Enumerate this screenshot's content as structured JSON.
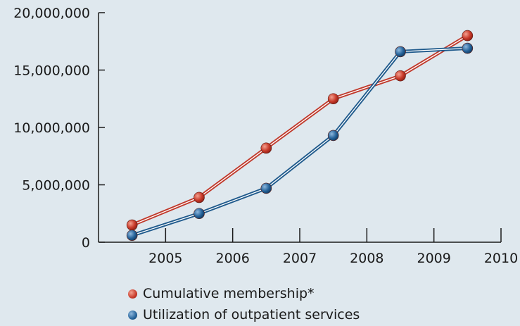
{
  "chart_data": {
    "type": "line",
    "x_ticks": [
      "2005",
      "2006",
      "2007",
      "2008",
      "2009",
      "2010"
    ],
    "y_ticks": [
      "0",
      "5,000,000",
      "10,000,000",
      "15,000,000",
      "20,000,000"
    ],
    "ylim": [
      0,
      20000000
    ],
    "xlim": [
      2004,
      2010
    ],
    "x": [
      2004.5,
      2005.5,
      2006.5,
      2007.5,
      2008.5,
      2009.5
    ],
    "series": [
      {
        "name": "Cumulative membership*",
        "color": "#c0392b",
        "values": [
          1500000,
          3900000,
          8200000,
          12500000,
          14500000,
          18000000
        ]
      },
      {
        "name": "Utilization of outpatient services",
        "color": "#1f5a8c",
        "values": [
          600000,
          2500000,
          4700000,
          9300000,
          16600000,
          16900000
        ]
      }
    ],
    "legend_position": "bottom",
    "grid": false
  }
}
